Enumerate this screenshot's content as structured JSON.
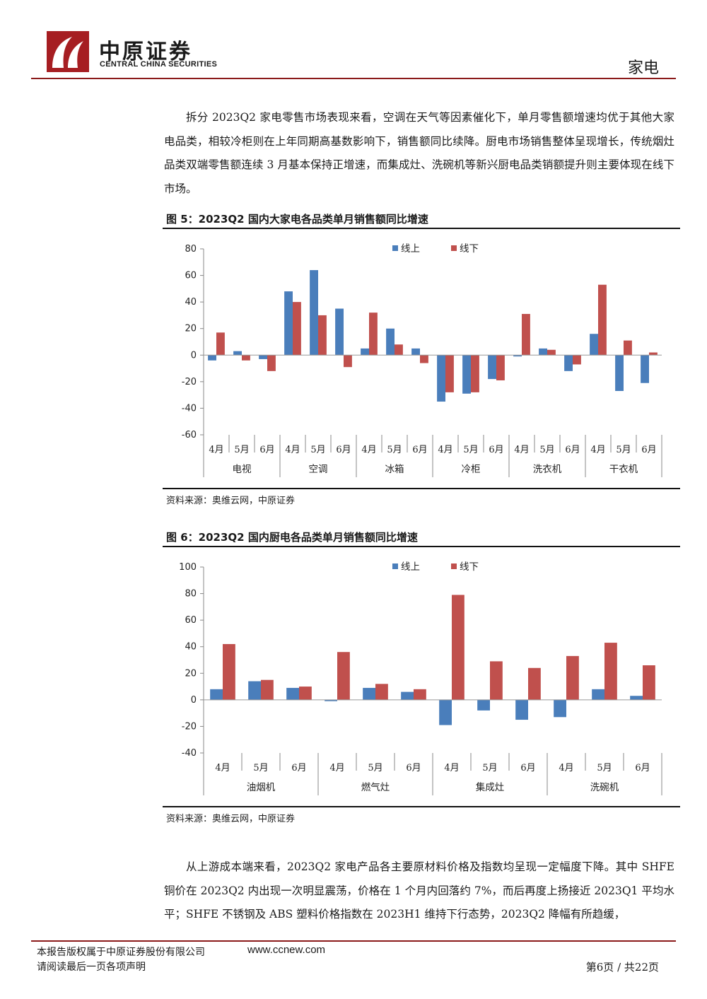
{
  "header": {
    "company_cn": "中原证券",
    "company_en": "CENTRAL CHINA SECURITIES",
    "section": "家电"
  },
  "paragraphs": [
    "拆分 2023Q2 家电零售市场表现来看，空调在天气等因素催化下，单月零售额增速均优于其他大家电品类，相较冷柜则在上年同期高基数影响下，销售额同比续降。厨电市场销售整体呈现增长，传统烟灶品类双端零售额连续 3 月基本保持正增速，而集成灶、洗碗机等新兴厨电品类销额提升则主要体现在线下市场。",
    "从上游成本端来看，2023Q2 家电产品各主要原材料价格及指数均呈现一定幅度下降。其中 SHFE 铜价在 2023Q2 内出现一次明显震荡，价格在 1 个月内回落约 7%，而后再度上扬接近 2023Q1 平均水平；SHFE 不锈钢及 ABS 塑料价格指数在 2023H1 维持下行态势，2023Q2 降幅有所趋缓，"
  ],
  "figures": [
    {
      "title": "图 5：2023Q2 国内大家电各品类单月销售额同比增速",
      "source": "资料来源：奥维云网，中原证券"
    },
    {
      "title": "图 6：2023Q2 国内厨电各品类单月销售额同比增速",
      "source": "资料来源：奥维云网，中原证券"
    }
  ],
  "chart_data": [
    {
      "type": "bar",
      "title": "图 5：2023Q2 国内大家电各品类单月销售额同比增速",
      "groups": [
        "电视",
        "空调",
        "冰箱",
        "冷柜",
        "洗衣机",
        "干衣机"
      ],
      "months": [
        "4月",
        "5月",
        "6月"
      ],
      "ylim": [
        -60,
        80
      ],
      "yticks": [
        -60,
        -40,
        -20,
        0,
        20,
        40,
        60,
        80
      ],
      "legend_position": "top",
      "series": [
        {
          "name": "线上",
          "color": "#4a7ebb",
          "values": [
            -4,
            3,
            -3,
            48,
            64,
            35,
            5,
            20,
            5,
            -35,
            -29,
            -18,
            -1,
            5,
            -12,
            16,
            -27,
            -21
          ]
        },
        {
          "name": "线下",
          "color": "#c0504d",
          "values": [
            17,
            -4,
            -12,
            40,
            30,
            -9,
            32,
            8,
            -6,
            -28,
            -28,
            -19,
            31,
            4,
            -7,
            53,
            11,
            2
          ]
        }
      ]
    },
    {
      "type": "bar",
      "title": "图 6：2023Q2 国内厨电各品类单月销售额同比增速",
      "groups": [
        "油烟机",
        "燃气灶",
        "集成灶",
        "洗碗机"
      ],
      "months": [
        "4月",
        "5月",
        "6月"
      ],
      "ylim": [
        -40,
        100
      ],
      "yticks": [
        -40,
        -20,
        0,
        20,
        40,
        60,
        80,
        100
      ],
      "legend_position": "top",
      "series": [
        {
          "name": "线上",
          "color": "#4a7ebb",
          "values": [
            8,
            14,
            9,
            -1,
            9,
            6,
            -19,
            -8,
            -15,
            -13,
            8,
            3
          ]
        },
        {
          "name": "线下",
          "color": "#c0504d",
          "values": [
            42,
            15,
            10,
            36,
            12,
            8,
            79,
            29,
            24,
            33,
            43,
            26
          ]
        }
      ]
    }
  ],
  "footer": {
    "copyright": "本报告版权属于中原证券股份有限公司",
    "url": "www.ccnew.com",
    "disclaimer": "请阅读最后一页各项声明",
    "page": "第6页 / 共22页"
  }
}
